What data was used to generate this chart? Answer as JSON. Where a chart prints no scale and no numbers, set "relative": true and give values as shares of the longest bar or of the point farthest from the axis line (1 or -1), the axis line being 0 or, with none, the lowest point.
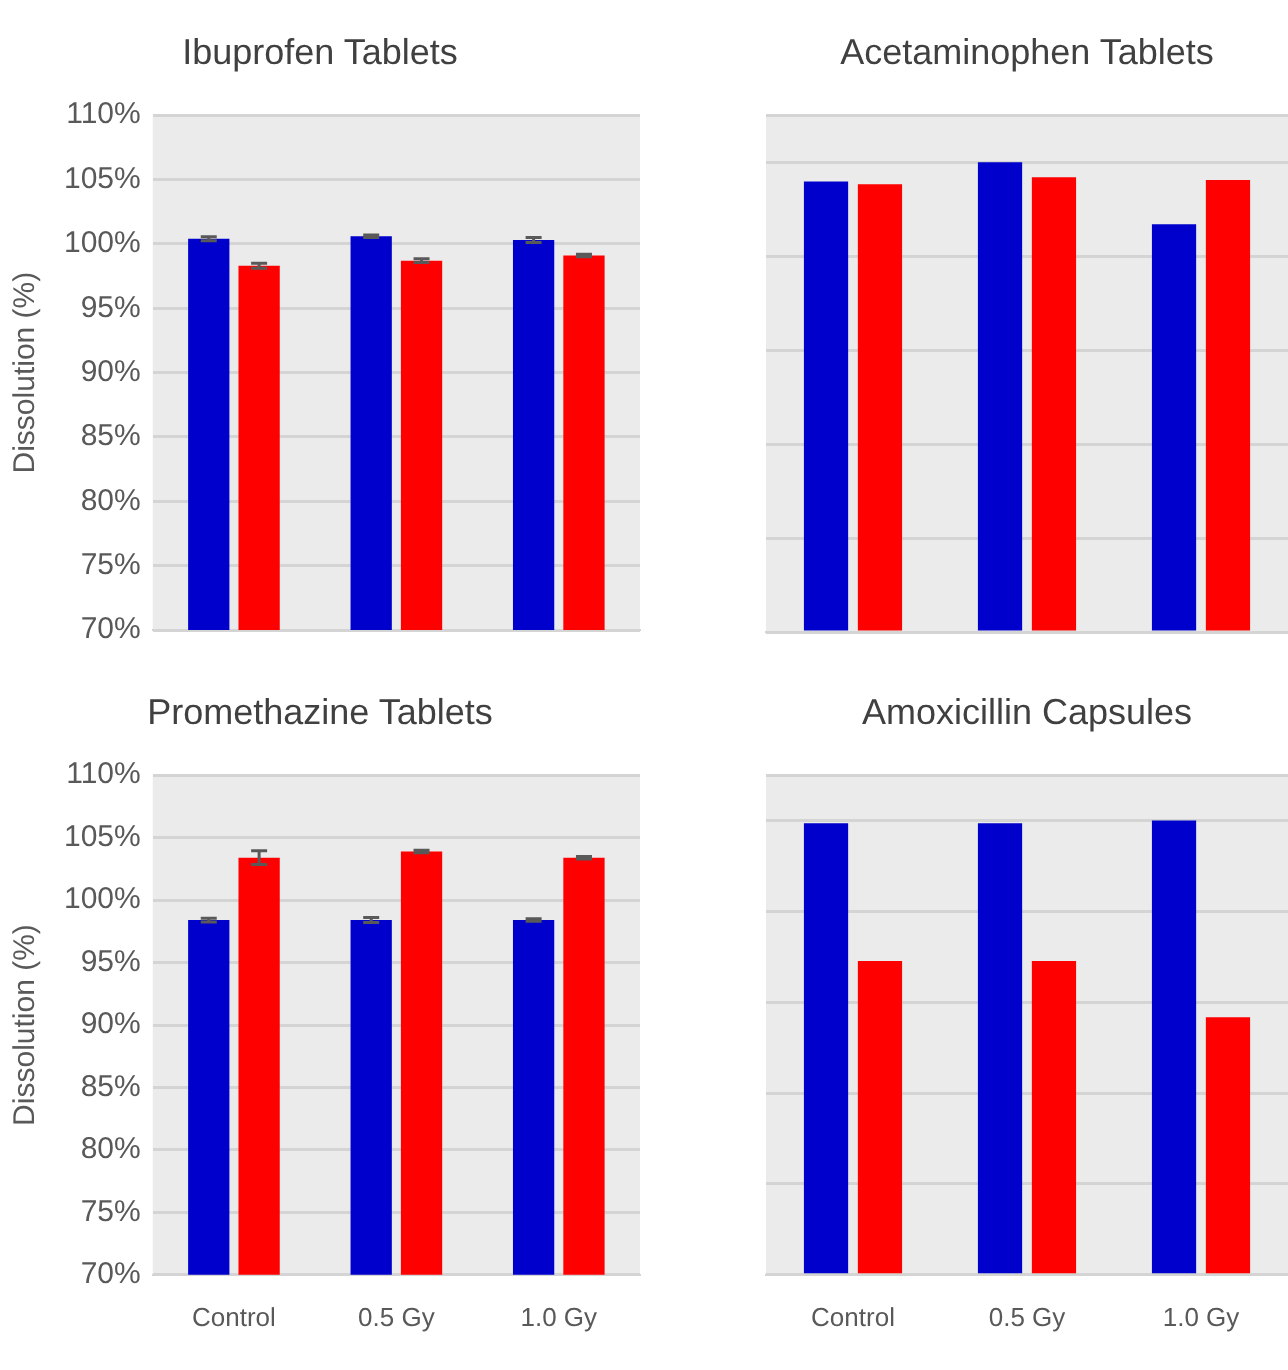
{
  "chart_data": [
    {
      "type": "bar",
      "title": "Ibuprofen Tablets",
      "ylabel": "Dissolution (%)",
      "categories": [
        null,
        null,
        null
      ],
      "series": [
        {
          "color": "#0000cc",
          "values": [
            100.4,
            100.6,
            100.3
          ],
          "errors": [
            0.15,
            0.1,
            0.2
          ]
        },
        {
          "color": "#ff0000",
          "values": [
            98.3,
            98.7,
            99.1
          ],
          "errors": [
            0.2,
            0.15,
            0.1
          ]
        }
      ],
      "ylim": [
        70,
        110
      ],
      "yticks": [
        {
          "value": 70,
          "label": "70%"
        },
        {
          "value": 75,
          "label": "75%"
        },
        {
          "value": 80,
          "label": "80%"
        },
        {
          "value": 85,
          "label": "85%"
        },
        {
          "value": 90,
          "label": "90%"
        },
        {
          "value": 95,
          "label": "95%"
        },
        {
          "value": 100,
          "label": "100%"
        },
        {
          "value": 105,
          "label": "105%"
        },
        {
          "value": 110,
          "label": "110%"
        }
      ],
      "grid": "y",
      "legend": false,
      "tick_labels": "y"
    },
    {
      "type": "bar",
      "title": "Acetaminophen Tablets",
      "categories": [
        null,
        null,
        null
      ],
      "relative": true,
      "series": [
        {
          "color": "#0000cc",
          "values": [
            0.959,
            1,
            0.868
          ]
        },
        {
          "color": "#ff0000",
          "values": [
            0.953,
            0.968,
            0.962
          ]
        }
      ],
      "grid": "y",
      "legend": false,
      "tick_labels": false
    },
    {
      "type": "bar",
      "title": "Promethazine Tablets",
      "ylabel": "Dissolution (%)",
      "categories": [
        "Control",
        "0.5 Gy",
        "1.0 Gy"
      ],
      "series": [
        {
          "color": "#0000cc",
          "values": [
            98.4,
            98.4,
            98.4
          ],
          "errors": [
            0.15,
            0.2,
            0.1
          ]
        },
        {
          "color": "#ff0000",
          "values": [
            103.4,
            103.9,
            103.4
          ],
          "errors": [
            0.55,
            0.1,
            0.1
          ]
        }
      ],
      "ylim": [
        70,
        110
      ],
      "yticks": [
        {
          "value": 70,
          "label": "70%"
        },
        {
          "value": 75,
          "label": "75%"
        },
        {
          "value": 80,
          "label": "80%"
        },
        {
          "value": 85,
          "label": "85%"
        },
        {
          "value": 90,
          "label": "90%"
        },
        {
          "value": 95,
          "label": "95%"
        },
        {
          "value": 100,
          "label": "100%"
        },
        {
          "value": 105,
          "label": "105%"
        },
        {
          "value": 110,
          "label": "110%"
        }
      ],
      "grid": "y",
      "legend": false
    },
    {
      "type": "bar",
      "title": "Amoxicillin Capsules",
      "categories": [
        "Control",
        "0.5 Gy",
        "1.0 Gy"
      ],
      "relative": true,
      "series": [
        {
          "color": "#0000cc",
          "values": [
            0.994,
            0.994,
            1
          ]
        },
        {
          "color": "#ff0000",
          "values": [
            0.691,
            0.691,
            0.567
          ]
        }
      ],
      "grid": "y",
      "legend": false,
      "tick_labels": "x"
    }
  ]
}
